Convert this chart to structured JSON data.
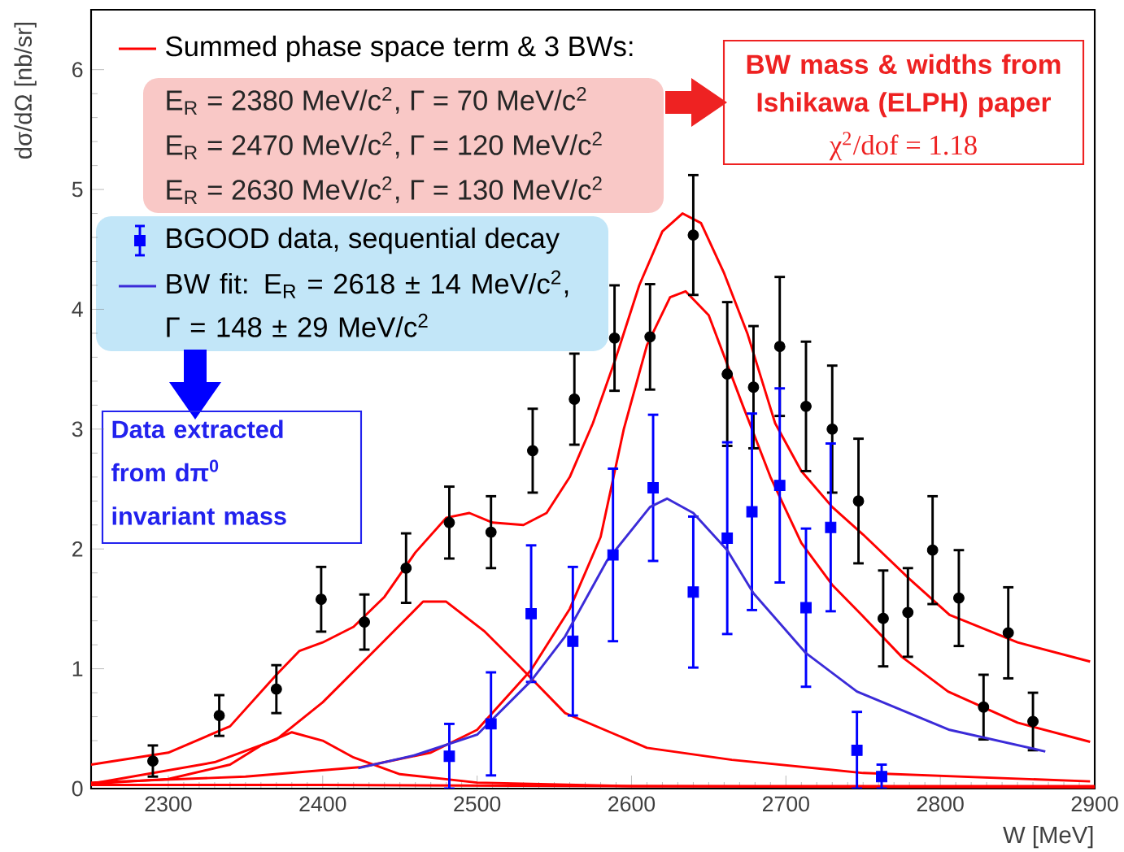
{
  "chart_data": {
    "type": "scatter",
    "xlabel": "W [MeV]",
    "ylabel": "dσ/dΩ [nb/sr]",
    "xlim": [
      2250,
      2900
    ],
    "ylim": [
      0,
      6.5
    ],
    "xticks": [
      2300,
      2400,
      2500,
      2600,
      2700,
      2800,
      2900
    ],
    "yticks": [
      0,
      1,
      2,
      3,
      4,
      5,
      6
    ],
    "legend": "top left",
    "series": [
      {
        "type": "line",
        "name": "Summed phase space term & 3 BWs:",
        "color": "#ff0000",
        "marker": "none",
        "x": [
          2250,
          2300,
          2340,
          2370,
          2385,
          2400,
          2420,
          2440,
          2460,
          2480,
          2495,
          2510,
          2530,
          2545,
          2560,
          2575,
          2590,
          2605,
          2620,
          2633,
          2645,
          2660,
          2675,
          2693,
          2710,
          2730,
          2750,
          2780,
          2806,
          2850,
          2897
        ],
        "values": [
          0.2,
          0.3,
          0.52,
          0.95,
          1.15,
          1.22,
          1.35,
          1.6,
          1.97,
          2.26,
          2.3,
          2.22,
          2.2,
          2.3,
          2.6,
          3.05,
          3.6,
          4.2,
          4.65,
          4.8,
          4.72,
          4.3,
          3.8,
          3.05,
          2.65,
          2.35,
          2.12,
          1.75,
          1.45,
          1.22,
          1.06
        ]
      },
      {
        "type": "line",
        "color": "#ff0000",
        "marker": "none",
        "x": [
          2250,
          2350,
          2425,
          2470,
          2500,
          2535,
          2560,
          2580,
          2595,
          2610,
          2625,
          2635,
          2650,
          2672,
          2690,
          2710,
          2730,
          2749,
          2775,
          2805,
          2850,
          2897
        ],
        "values": [
          0.05,
          0.1,
          0.18,
          0.3,
          0.49,
          0.99,
          1.5,
          2.1,
          3.0,
          3.7,
          4.1,
          4.15,
          3.95,
          3.2,
          2.6,
          2.05,
          1.7,
          1.45,
          1.1,
          0.81,
          0.55,
          0.39
        ]
      },
      {
        "type": "line",
        "color": "#ff0000",
        "marker": "none",
        "x": [
          2250,
          2330,
          2370,
          2400,
          2435,
          2465,
          2480,
          2505,
          2526,
          2557,
          2610,
          2665,
          2750,
          2897
        ],
        "values": [
          0.04,
          0.22,
          0.41,
          0.72,
          1.17,
          1.56,
          1.56,
          1.31,
          1.04,
          0.63,
          0.34,
          0.24,
          0.13,
          0.06
        ]
      },
      {
        "type": "line",
        "color": "#ff0000",
        "marker": "none",
        "x": [
          2250,
          2300,
          2340,
          2360,
          2380,
          2400,
          2420,
          2450,
          2500,
          2600,
          2900
        ],
        "values": [
          0.04,
          0.08,
          0.2,
          0.36,
          0.47,
          0.4,
          0.26,
          0.12,
          0.05,
          0.02,
          0.01
        ]
      },
      {
        "type": "line",
        "color": "#ff0000",
        "marker": "none",
        "x": [
          2250,
          2400,
          2600,
          2900
        ],
        "values": [
          0.03,
          0.03,
          0.02,
          0.02
        ]
      },
      {
        "color": "#000000",
        "marker": "circle",
        "x": [
          2290,
          2333,
          2370,
          2399,
          2427,
          2454,
          2482,
          2509,
          2536,
          2563,
          2589,
          2612,
          2640,
          2662,
          2679,
          2696,
          2713,
          2730,
          2747,
          2763,
          2779,
          2795,
          2812,
          2828,
          2844,
          2860
        ],
        "values": [
          0.23,
          0.61,
          0.83,
          1.58,
          1.39,
          1.84,
          2.22,
          2.14,
          2.82,
          3.25,
          3.76,
          3.77,
          4.62,
          3.46,
          3.35,
          3.69,
          3.19,
          3.0,
          2.4,
          1.42,
          1.47,
          1.99,
          1.59,
          0.68,
          1.3,
          0.56
        ],
        "errors": [
          0.13,
          0.17,
          0.2,
          0.27,
          0.23,
          0.29,
          0.3,
          0.3,
          0.35,
          0.38,
          0.44,
          0.44,
          0.5,
          0.6,
          0.51,
          0.58,
          0.54,
          0.53,
          0.52,
          0.4,
          0.37,
          0.45,
          0.4,
          0.27,
          0.38,
          0.24
        ]
      },
      {
        "name": "BGOOD data, sequential decay",
        "color": "#0000ff",
        "marker": "square",
        "x": [
          2482,
          2509,
          2535,
          2562,
          2588,
          2614,
          2640,
          2662,
          2678,
          2696,
          2713,
          2729,
          2746,
          2762
        ],
        "values": [
          0.27,
          0.54,
          1.46,
          1.23,
          1.95,
          2.51,
          1.64,
          2.09,
          2.31,
          2.53,
          1.51,
          2.18,
          0.32,
          0.1
        ],
        "errors": [
          0.27,
          0.43,
          0.57,
          0.62,
          0.72,
          0.61,
          0.63,
          0.8,
          0.82,
          0.81,
          0.66,
          0.7,
          0.32,
          0.1
        ]
      },
      {
        "type": "line",
        "name": "BW fit: E$_{R}$ = 2618 ± 14 MeV/c$^{2}$, Γ = 148 ± 29 MeV/c$^{2}$",
        "color": "#3b2bd8",
        "marker": "none",
        "x": [
          2423,
          2460,
          2500,
          2535,
          2557,
          2584,
          2612,
          2623,
          2640,
          2662,
          2679,
          2713,
          2746,
          2806,
          2868
        ],
        "values": [
          0.17,
          0.28,
          0.45,
          0.9,
          1.27,
          1.9,
          2.35,
          2.42,
          2.3,
          1.99,
          1.63,
          1.13,
          0.81,
          0.49,
          0.31
        ]
      }
    ],
    "annotations": [
      "E$_{R}$ = 2380 MeV/c$^{2}$, Γ = 70 MeV/c$^{2}$",
      "E$_{R}$ = 2470 MeV/c$^{2}$, Γ = 120 MeV/c$^{2}$",
      "E$_{R}$ = 2630 MeV/c$^{2}$, Γ = 130 MeV/c$^{2}$",
      "BW mass & widths from Ishikawa (ELPH) paper",
      "χ$^{2}$/dof = 1.18",
      "Data extracted from dπ$^{0}$ invariant mass"
    ]
  }
}
